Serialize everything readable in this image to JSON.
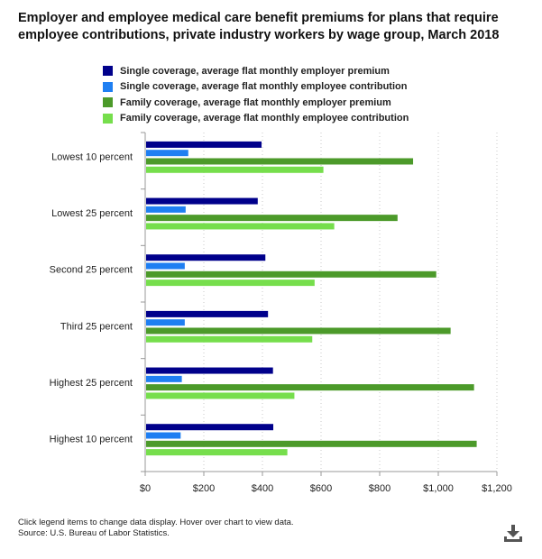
{
  "title": "Employer and employee medical care benefit premiums for plans that require employee contributions, private industry workers by wage group, March 2018",
  "footer": {
    "note": "Click legend items to change data display. Hover over chart to view data.",
    "source": "Source: U.S. Bureau of Labor Statistics."
  },
  "download_icon": "download-icon",
  "chart_data": {
    "type": "bar",
    "orientation": "horizontal",
    "title": "Employer and employee medical care benefit premiums for plans that require employee contributions, private industry workers by wage group, March 2018",
    "xlabel": "",
    "ylabel": "",
    "xlim": [
      0,
      1200
    ],
    "x_ticks": [
      0,
      200,
      400,
      600,
      800,
      1000,
      1200
    ],
    "x_tick_labels": [
      "$0",
      "$200",
      "$400",
      "$600",
      "$800",
      "$1,000",
      "$1,200"
    ],
    "grid": "vertical dotted",
    "legend_position": "top-left",
    "categories": [
      "Lowest 10 percent",
      "Lowest 25 percent",
      "Second 25 percent",
      "Third 25 percent",
      "Highest 25 percent",
      "Highest 10 percent"
    ],
    "series": [
      {
        "name": "Single coverage, average flat monthly employer premium",
        "color": "#00008b",
        "values": [
          397,
          384,
          410,
          419,
          436,
          437
        ]
      },
      {
        "name": "Single coverage, average flat monthly employee contribution",
        "color": "#1f7ff2",
        "values": [
          147,
          138,
          135,
          135,
          125,
          121
        ]
      },
      {
        "name": "Family coverage, average flat monthly employer premium",
        "color": "#4c9a2a",
        "values": [
          914,
          861,
          993,
          1042,
          1122,
          1131
        ]
      },
      {
        "name": "Family coverage, average flat monthly employee contribution",
        "color": "#76de4c",
        "values": [
          608,
          645,
          578,
          570,
          509,
          485
        ]
      }
    ]
  }
}
